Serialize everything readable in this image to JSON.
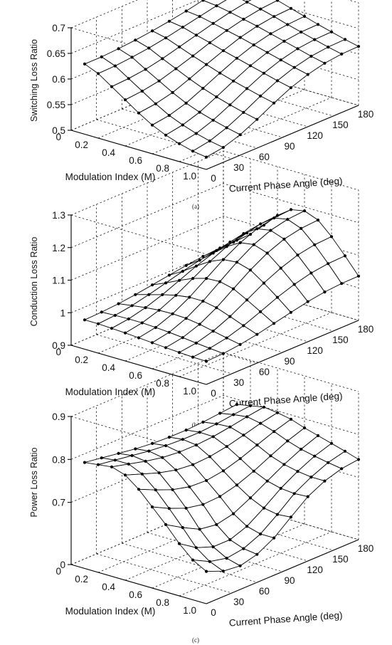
{
  "figure": {
    "panels": [
      {
        "caption": "(a)"
      },
      {
        "caption": "(b)"
      },
      {
        "caption": "(c)"
      }
    ]
  },
  "chart_data": [
    {
      "type": "surface",
      "title": "",
      "zlabel": "Switching Loss Ratio",
      "ylabel": "Modulation Index (M)",
      "xlabel": "Current Phase Angle (deg)",
      "x": [
        0,
        20,
        40,
        60,
        80,
        100,
        120,
        140,
        160,
        180
      ],
      "y": [
        0.1,
        0.2,
        0.3,
        0.4,
        0.5,
        0.6,
        0.7,
        0.8,
        0.9,
        1.0
      ],
      "x_ticks": [
        "0",
        "30",
        "60",
        "90",
        "120",
        "150",
        "180"
      ],
      "y_ticks": [
        "0",
        "0.2",
        "0.4",
        "0.6",
        "0.8",
        "1.0"
      ],
      "z_ticks": [
        "0.5",
        "0.55",
        "0.6",
        "0.65",
        "0.7"
      ],
      "xlim": [
        0,
        180
      ],
      "ylim": [
        0,
        1.0
      ],
      "zlim": [
        0.5,
        0.7
      ],
      "grid": true,
      "z": [
        [
          0.637,
          0.637,
          0.639,
          0.642,
          0.646,
          0.651,
          0.657,
          0.664,
          0.67,
          0.676
        ],
        [
          0.626,
          0.627,
          0.63,
          0.634,
          0.64,
          0.647,
          0.654,
          0.661,
          0.667,
          0.672
        ],
        [
          0.608,
          0.61,
          0.614,
          0.621,
          0.63,
          0.639,
          0.648,
          0.656,
          0.662,
          0.666
        ],
        [
          0.59,
          0.593,
          0.599,
          0.609,
          0.62,
          0.632,
          0.642,
          0.65,
          0.656,
          0.659
        ],
        [
          0.572,
          0.576,
          0.584,
          0.597,
          0.611,
          0.624,
          0.636,
          0.644,
          0.649,
          0.651
        ],
        [
          0.556,
          0.561,
          0.571,
          0.586,
          0.602,
          0.617,
          0.629,
          0.637,
          0.641,
          0.643
        ],
        [
          0.544,
          0.55,
          0.561,
          0.577,
          0.594,
          0.61,
          0.622,
          0.63,
          0.634,
          0.635
        ],
        [
          0.535,
          0.541,
          0.553,
          0.569,
          0.587,
          0.603,
          0.615,
          0.623,
          0.627,
          0.628
        ],
        [
          0.528,
          0.534,
          0.546,
          0.562,
          0.58,
          0.596,
          0.608,
          0.616,
          0.62,
          0.621
        ],
        [
          0.524,
          0.529,
          0.54,
          0.556,
          0.574,
          0.59,
          0.602,
          0.61,
          0.614,
          0.615
        ]
      ]
    },
    {
      "type": "surface",
      "title": "",
      "zlabel": "Conduction Loss Ratio",
      "ylabel": "Modulation Index (M)",
      "xlabel": "Current Phase Angle (deg)",
      "x": [
        0,
        20,
        40,
        60,
        80,
        100,
        120,
        140,
        160,
        180
      ],
      "y": [
        0.1,
        0.2,
        0.3,
        0.4,
        0.5,
        0.6,
        0.7,
        0.8,
        0.9,
        1.0
      ],
      "x_ticks": [
        "0",
        "30",
        "60",
        "90",
        "120",
        "150",
        "180"
      ],
      "y_ticks": [
        "0",
        "0.2",
        "0.4",
        "0.6",
        "0.8",
        "1.0"
      ],
      "z_ticks": [
        "0.9",
        "1",
        "1.1",
        "1.2",
        "1.3"
      ],
      "xlim": [
        0,
        180
      ],
      "ylim": [
        0,
        1.0
      ],
      "zlim": [
        0.9,
        1.3
      ],
      "grid": true,
      "z": [
        [
          0.99,
          0.992,
          0.996,
          1.002,
          1.01,
          1.018,
          1.026,
          1.032,
          1.036,
          1.038
        ],
        [
          0.99,
          0.994,
          1.002,
          1.014,
          1.028,
          1.042,
          1.054,
          1.062,
          1.066,
          1.068
        ],
        [
          0.988,
          0.995,
          1.008,
          1.026,
          1.048,
          1.07,
          1.088,
          1.1,
          1.106,
          1.108
        ],
        [
          0.986,
          0.995,
          1.012,
          1.036,
          1.066,
          1.096,
          1.12,
          1.138,
          1.146,
          1.15
        ],
        [
          0.983,
          0.993,
          1.013,
          1.042,
          1.078,
          1.114,
          1.144,
          1.165,
          1.176,
          1.18
        ],
        [
          0.98,
          0.99,
          1.011,
          1.042,
          1.08,
          1.118,
          1.15,
          1.172,
          1.184,
          1.188
        ],
        [
          0.977,
          0.986,
          1.005,
          1.034,
          1.07,
          1.106,
          1.136,
          1.157,
          1.168,
          1.172
        ],
        [
          0.974,
          0.981,
          0.996,
          1.019,
          1.048,
          1.078,
          1.102,
          1.12,
          1.13,
          1.133
        ],
        [
          0.972,
          0.977,
          0.987,
          1.003,
          1.024,
          1.046,
          1.064,
          1.077,
          1.084,
          1.086
        ],
        [
          0.971,
          0.973,
          0.979,
          0.988,
          1.0,
          1.012,
          1.023,
          1.031,
          1.035,
          1.036
        ]
      ]
    },
    {
      "type": "surface",
      "title": "",
      "zlabel": "Power Loss Ratio",
      "ylabel": "Modulation Index (M)",
      "xlabel": "Current Phase Angle (deg)",
      "x": [
        0,
        20,
        40,
        60,
        80,
        100,
        120,
        140,
        160,
        180
      ],
      "y": [
        0.1,
        0.2,
        0.3,
        0.4,
        0.5,
        0.6,
        0.7,
        0.8,
        0.9,
        1.0
      ],
      "x_ticks": [
        "0",
        "30",
        "60",
        "90",
        "120",
        "150",
        "180"
      ],
      "y_ticks": [
        "0",
        "0.2",
        "0.4",
        "0.6",
        "0.8",
        "1.0"
      ],
      "z_ticks": [
        "0",
        "0.7",
        "0.8",
        "0.9"
      ],
      "xlim": [
        0,
        180
      ],
      "ylim": [
        0,
        1.0
      ],
      "zlim": [
        0.6,
        0.9
      ],
      "grid": true,
      "z": [
        [
          0.802,
          0.796,
          0.79,
          0.784,
          0.78,
          0.778,
          0.778,
          0.78,
          0.784,
          0.788
        ],
        [
          0.806,
          0.8,
          0.794,
          0.788,
          0.784,
          0.782,
          0.782,
          0.785,
          0.79,
          0.794
        ],
        [
          0.81,
          0.8,
          0.79,
          0.782,
          0.778,
          0.778,
          0.781,
          0.787,
          0.794,
          0.8
        ],
        [
          0.8,
          0.786,
          0.772,
          0.762,
          0.758,
          0.76,
          0.767,
          0.777,
          0.788,
          0.796
        ],
        [
          0.776,
          0.758,
          0.742,
          0.732,
          0.73,
          0.736,
          0.748,
          0.763,
          0.778,
          0.79
        ],
        [
          0.744,
          0.724,
          0.708,
          0.7,
          0.702,
          0.712,
          0.728,
          0.747,
          0.765,
          0.779
        ],
        [
          0.712,
          0.692,
          0.678,
          0.674,
          0.68,
          0.694,
          0.714,
          0.736,
          0.755,
          0.77
        ],
        [
          0.684,
          0.666,
          0.656,
          0.656,
          0.666,
          0.684,
          0.706,
          0.729,
          0.748,
          0.761
        ],
        [
          0.664,
          0.65,
          0.644,
          0.648,
          0.66,
          0.68,
          0.703,
          0.725,
          0.742,
          0.752
        ],
        [
          0.652,
          0.641,
          0.638,
          0.645,
          0.66,
          0.682,
          0.705,
          0.725,
          0.737,
          0.742
        ]
      ]
    }
  ]
}
